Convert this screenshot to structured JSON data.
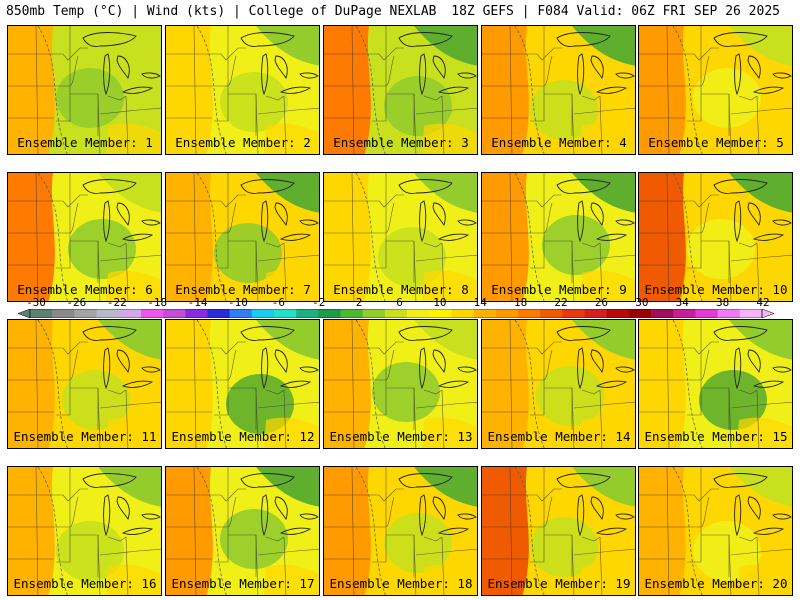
{
  "header": {
    "left": "850mb Temp (°C) | Wind (kts) | College of DuPage NEXLAB",
    "right": "18Z GEFS | F084 Valid: 06Z FRI SEP 26 2025"
  },
  "colorbar": {
    "labels": [
      "-30",
      "-26",
      "-22",
      "-18",
      "-14",
      "-10",
      "-6",
      "-2",
      "2",
      "6",
      "10",
      "14",
      "18",
      "22",
      "26",
      "30",
      "34",
      "38",
      "42"
    ],
    "colors": [
      "#5f7f72",
      "#8a8a8a",
      "#a3a3a3",
      "#b8b8c8",
      "#d2a8e8",
      "#ee55ee",
      "#c24ed8",
      "#8a2be2",
      "#2b2bd8",
      "#2f7ff2",
      "#1ec9f0",
      "#25dfc8",
      "#20b080",
      "#1d9a4a",
      "#4cb82e",
      "#94cc2c",
      "#c8e01e",
      "#f0f018",
      "#fff200",
      "#ffd700",
      "#ffb300",
      "#ff9a00",
      "#ff7a00",
      "#f05a00",
      "#e83a10",
      "#d42020",
      "#b80a0a",
      "#9c0000",
      "#a0105a",
      "#c81e9a",
      "#e23ad2",
      "#f07af0",
      "#f5b4f5"
    ]
  },
  "members": [
    {
      "label": "Ensemble Member: 1"
    },
    {
      "label": "Ensemble Member: 2"
    },
    {
      "label": "Ensemble Member: 3"
    },
    {
      "label": "Ensemble Member: 4"
    },
    {
      "label": "Ensemble Member: 5"
    },
    {
      "label": "Ensemble Member: 6"
    },
    {
      "label": "Ensemble Member: 7"
    },
    {
      "label": "Ensemble Member: 8"
    },
    {
      "label": "Ensemble Member: 9"
    },
    {
      "label": "Ensemble Member: 10"
    },
    {
      "label": "Ensemble Member: 11"
    },
    {
      "label": "Ensemble Member: 12"
    },
    {
      "label": "Ensemble Member: 13"
    },
    {
      "label": "Ensemble Member: 14"
    },
    {
      "label": "Ensemble Member: 15"
    },
    {
      "label": "Ensemble Member: 16"
    },
    {
      "label": "Ensemble Member: 17"
    },
    {
      "label": "Ensemble Member: 18"
    },
    {
      "label": "Ensemble Member: 19"
    },
    {
      "label": "Ensemble Member: 20"
    }
  ]
}
